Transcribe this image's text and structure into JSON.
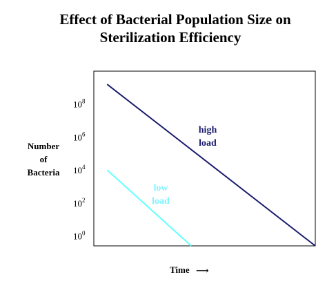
{
  "chart_data": {
    "type": "line",
    "title": [
      "Effect of Bacterial Population Size on",
      "Sterilization Efficiency"
    ],
    "ylabel": [
      "Number",
      "of",
      "Bacteria"
    ],
    "xlabel": "Time",
    "x_arrow": "⟶",
    "y_scale": "log10",
    "ylim_exponent": [
      -0.6,
      10.0
    ],
    "xlim": [
      0,
      10
    ],
    "yticks": [
      {
        "base": "10",
        "exp": "0",
        "value": 0
      },
      {
        "base": "10",
        "exp": "2",
        "value": 2
      },
      {
        "base": "10",
        "exp": "4",
        "value": 4
      },
      {
        "base": "10",
        "exp": "6",
        "value": 6
      },
      {
        "base": "10",
        "exp": "8",
        "value": 8
      }
    ],
    "grid": false,
    "legend": "none",
    "series": [
      {
        "name": "high load",
        "label_lines": [
          "high",
          "load"
        ],
        "color": "#1a1a6e",
        "points": [
          [
            0.6,
            9.2
          ],
          [
            10.0,
            -0.6
          ]
        ]
      },
      {
        "name": "low load",
        "label_lines": [
          "low",
          "load"
        ],
        "color": "#66ffff",
        "points": [
          [
            0.6,
            4.0
          ],
          [
            4.4,
            -0.6
          ]
        ]
      }
    ]
  }
}
